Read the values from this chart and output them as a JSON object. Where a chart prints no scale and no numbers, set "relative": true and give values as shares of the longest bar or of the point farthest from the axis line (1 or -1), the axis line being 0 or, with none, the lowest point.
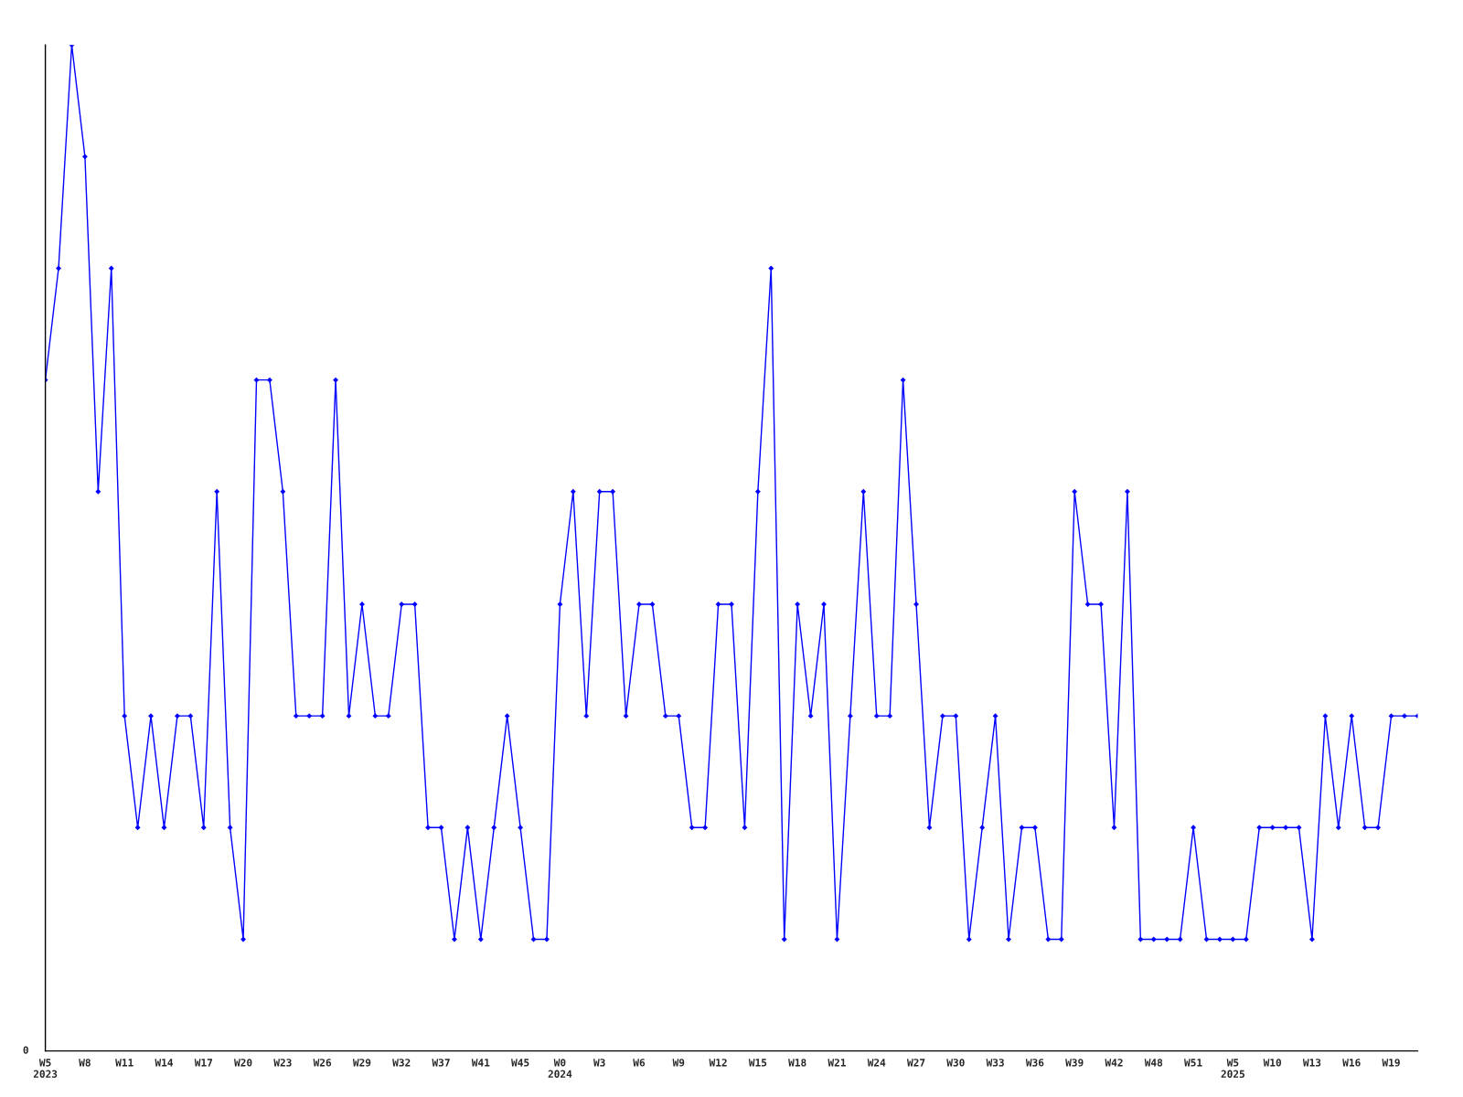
{
  "chart_data": {
    "type": "line",
    "relative": true,
    "marker": "diamond",
    "line_style": "solid",
    "grid": false,
    "legend": false,
    "categories": [
      "W5\n2023",
      null,
      null,
      "W8",
      null,
      null,
      "W11",
      null,
      null,
      "W14",
      null,
      null,
      "W17",
      null,
      null,
      "W20",
      null,
      null,
      "W23",
      null,
      null,
      "W26",
      null,
      null,
      "W29",
      null,
      null,
      "W32",
      null,
      null,
      "W37",
      null,
      null,
      "W41",
      null,
      null,
      "W45",
      null,
      null,
      "W0\n2024",
      null,
      null,
      "W3",
      null,
      null,
      "W6",
      null,
      null,
      "W9",
      null,
      null,
      "W12",
      null,
      null,
      "W15",
      null,
      null,
      "W18",
      null,
      null,
      "W21",
      null,
      null,
      "W24",
      null,
      null,
      "W27",
      null,
      null,
      "W30",
      null,
      null,
      "W33",
      null,
      null,
      "W36",
      null,
      null,
      "W39",
      null,
      null,
      "W42",
      null,
      null,
      "W48",
      null,
      null,
      "W51",
      null,
      null,
      "W5\n2025",
      null,
      null,
      "W10",
      null,
      null,
      "W13",
      null,
      null,
      "W16",
      null,
      null,
      "W19",
      null,
      null
    ],
    "series": [
      {
        "color": "#0000ff",
        "values": [
          0.667,
          0.778,
          1,
          0.889,
          0.556,
          0.778,
          0.333,
          0.222,
          0.333,
          0.222,
          0.333,
          0.333,
          0.222,
          0.556,
          0.222,
          0.111,
          0.667,
          0.667,
          0.556,
          0.333,
          0.333,
          0.333,
          0.667,
          0.333,
          0.444,
          0.333,
          0.333,
          0.444,
          0.444,
          0.222,
          0.222,
          0.111,
          0.222,
          0.111,
          0.222,
          0.333,
          0.222,
          0.111,
          0.111,
          0.444,
          0.556,
          0.333,
          0.556,
          0.556,
          0.333,
          0.444,
          0.444,
          0.333,
          0.333,
          0.222,
          0.222,
          0.444,
          0.444,
          0.222,
          0.556,
          0.778,
          0.111,
          0.444,
          0.333,
          0.444,
          0.111,
          0.333,
          0.556,
          0.333,
          0.333,
          0.667,
          0.444,
          0.222,
          0.333,
          0.333,
          0.111,
          0.222,
          0.333,
          0.111,
          0.222,
          0.222,
          0.111,
          0.111,
          0.556,
          0.444,
          0.444,
          0.222,
          0.556,
          0.111,
          0.111,
          0.111,
          0.111,
          0.222,
          0.111,
          0.111,
          0.111,
          0.111,
          0.222,
          0.222,
          0.222,
          0.222,
          0.111,
          0.333,
          0.222,
          0.333,
          0.222,
          0.222,
          0.333,
          0.333,
          0.333
        ]
      }
    ],
    "annotations": [
      "0"
    ]
  }
}
